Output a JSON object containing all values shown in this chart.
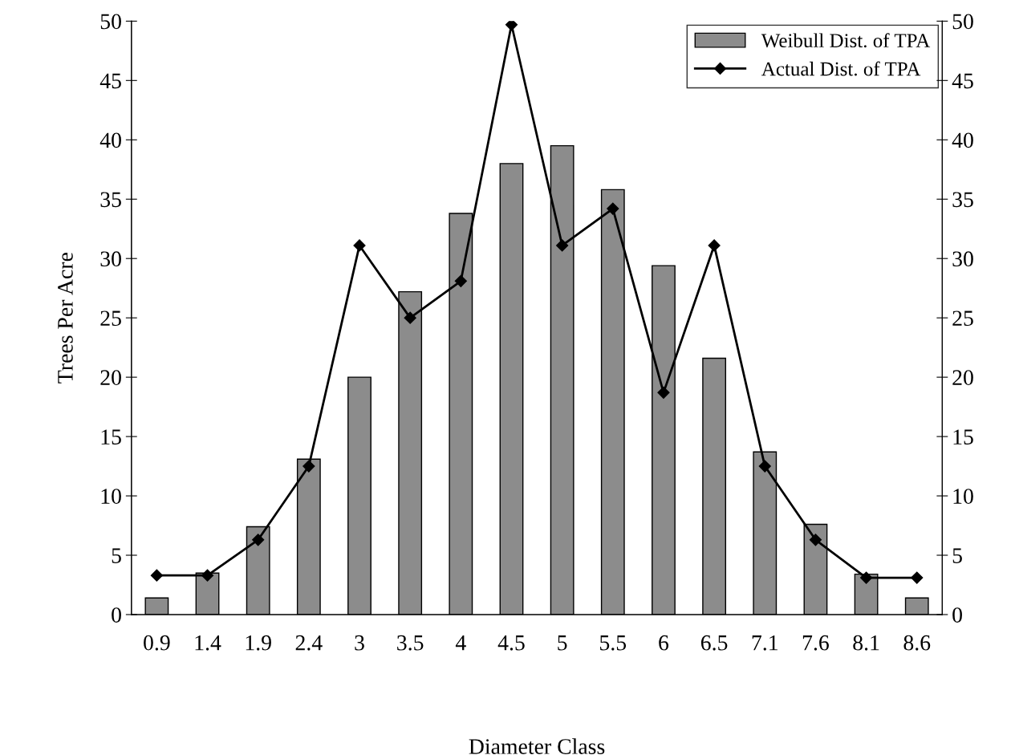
{
  "chart_data": {
    "type": "bar",
    "xlabel": "Diameter Class",
    "ylabel": "Trees Per Acre",
    "categories": [
      "0.9",
      "1.4",
      "1.9",
      "2.4",
      "3",
      "3.5",
      "4",
      "4.5",
      "5",
      "5.5",
      "6",
      "6.5",
      "7.1",
      "7.6",
      "8.1",
      "8.6"
    ],
    "series": [
      {
        "name": "Weibull Dist. of TPA",
        "color": "#8c8c8c",
        "values": [
          1.4,
          3.5,
          7.4,
          13.1,
          20,
          27.2,
          33.8,
          38,
          39.5,
          35.8,
          29.4,
          21.6,
          13.7,
          7.6,
          3.4,
          1.4
        ]
      },
      {
        "name": "Actual Dist. of TPA",
        "type": "line",
        "color": "#000000",
        "marker": "diamond",
        "values": [
          3.3,
          3.3,
          6.3,
          12.5,
          31.1,
          25,
          28.1,
          49.7,
          31.1,
          34.2,
          18.7,
          31.1,
          12.5,
          6.3,
          3.1,
          3.1
        ]
      }
    ],
    "ylim": [
      0,
      50
    ],
    "yticks": [
      0,
      5,
      10,
      15,
      20,
      25,
      30,
      35,
      40,
      45,
      50
    ],
    "y2lim": [
      0,
      50
    ],
    "y2ticks": [
      0,
      5,
      10,
      15,
      20,
      25,
      30,
      35,
      40,
      45,
      50
    ],
    "legend": "top right",
    "grid": false
  }
}
